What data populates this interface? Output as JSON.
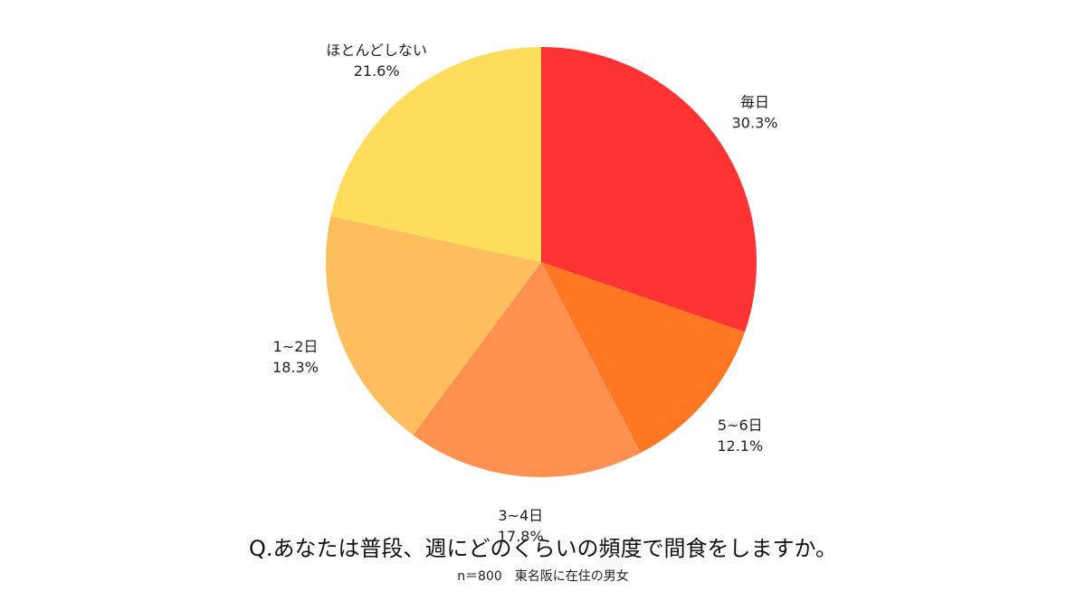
{
  "chart_data": {
    "type": "pie",
    "title": "Q.あなたは普段、週にどのくらいの頻度で間食をしますか。",
    "subtitle": "n＝800　東名阪に在住の男女",
    "start": "12-o'clock",
    "direction": "clockwise",
    "slices": [
      {
        "label": "毎日",
        "value": 30.3,
        "value_label": "30.3%",
        "color": "#FF3333"
      },
      {
        "label": "5~6日",
        "value": 12.1,
        "value_label": "12.1%",
        "color": "#FF7722"
      },
      {
        "label": "3~4日",
        "value": 17.8,
        "value_label": "17.8%",
        "color": "#FF9150"
      },
      {
        "label": "1~2日",
        "value": 18.3,
        "value_label": "18.3%",
        "color": "#FFBE5E"
      },
      {
        "label": "ほとんどしない",
        "value": 21.6,
        "value_label": "21.6%",
        "color": "#FFDD5C"
      }
    ]
  }
}
